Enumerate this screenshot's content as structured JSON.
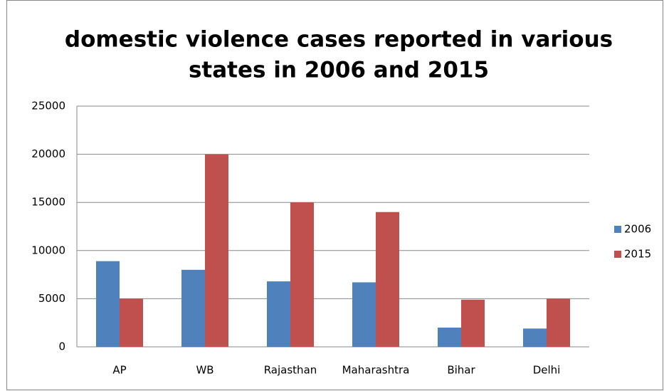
{
  "chart_data": {
    "type": "bar",
    "title": [
      "domestic violence cases reported in various",
      "states in 2006 and 2015"
    ],
    "categories": [
      "AP",
      "WB",
      "Rajasthan",
      "Maharashtra",
      "Bihar",
      "Delhi"
    ],
    "series": [
      {
        "name": "2006",
        "color": "#4f81bd",
        "values": [
          8900,
          8000,
          6800,
          6700,
          2000,
          1900
        ]
      },
      {
        "name": "2015",
        "color": "#c0504d",
        "values": [
          5000,
          20000,
          15000,
          14000,
          4900,
          5000
        ]
      }
    ],
    "ylim": [
      0,
      25000
    ],
    "yticks": [
      0,
      5000,
      10000,
      15000,
      20000,
      25000
    ],
    "grid": true,
    "legend": "right"
  }
}
